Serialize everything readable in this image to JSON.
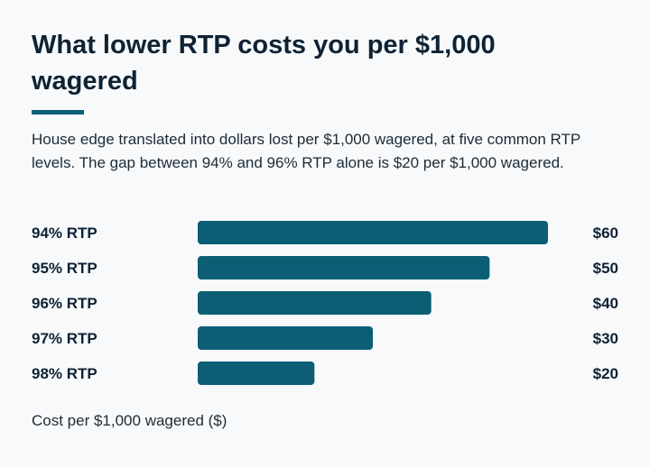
{
  "title": "What lower RTP costs you per $1,000 wagered",
  "subtitle": "House edge translated into dollars lost per $1,000 wagered, at five common RTP levels. The gap between 94% and 96% RTP alone is $20 per $1,000 wagered.",
  "colors": {
    "bar": "#0b5e74",
    "accent": "#0b5e74",
    "text": "#0f2233"
  },
  "chart_data": {
    "type": "bar",
    "orientation": "horizontal",
    "title": "What lower RTP costs you per $1,000 wagered",
    "subtitle": "House edge translated into dollars lost per $1,000 wagered, at five common RTP levels. The gap between 94% and 96% RTP alone is $20 per $1,000 wagered.",
    "xlabel": "Cost per $1,000 wagered ($)",
    "categories": [
      "94% RTP",
      "95% RTP",
      "96% RTP",
      "97% RTP",
      "98% RTP"
    ],
    "values": [
      60,
      50,
      40,
      30,
      20
    ],
    "value_labels": [
      "$60",
      "$50",
      "$40",
      "$30",
      "$20"
    ],
    "xlim": [
      0,
      60
    ],
    "grid": false,
    "legend": "none"
  }
}
